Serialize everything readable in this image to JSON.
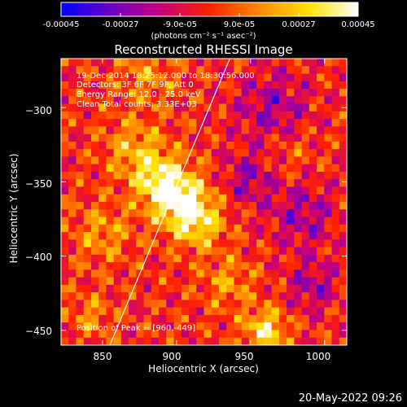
{
  "colorbar": {
    "tick_labels": [
      "-0.00045",
      "-0.00027",
      "-9.0e-05",
      "9.0e-05",
      "0.00027",
      "0.00045"
    ],
    "ticks": [
      -0.00045,
      -0.00027,
      -9e-05,
      9e-05,
      0.00027,
      0.00045
    ],
    "range": [
      -0.00045,
      0.00045
    ],
    "units_label": "(photons cm⁻² s⁻¹ asec⁻²)",
    "colors": [
      "#0000ff",
      "#6a00c8",
      "#c8007a",
      "#ff2000",
      "#ff8a00",
      "#ffe000",
      "#ffffff"
    ]
  },
  "chart_data": {
    "type": "heatmap",
    "title": "Reconstructed RHESSI Image",
    "xlabel": "Heliocentric X (arcsec)",
    "ylabel": "Heliocentric Y (arcsec)",
    "xlim": [
      822,
      1015
    ],
    "ylim": [
      -460,
      -267
    ],
    "x_ticks": [
      850,
      900,
      950,
      1000
    ],
    "y_ticks": [
      -300,
      -350,
      -400,
      -450
    ],
    "x_tick_labels": [
      "850",
      "900",
      "950",
      "1000"
    ],
    "y_tick_labels": [
      "−300",
      "−350",
      "−400",
      "−450"
    ],
    "peak_position": [
      960,
      -449
    ],
    "limb_line": [
      [
        855,
        -460
      ],
      [
        936,
        -267
      ]
    ],
    "annotations": [
      "19-Dec-2014 18:25:12.000 to 18:30:56.000",
      "Detectors: 3F 6F 7F 9F, Att 0",
      "Energy Range: 12.0 - 25.0 keV",
      "Clean     Total counts: 3.33E+03",
      "Position of Peak = [960,-449]"
    ]
  },
  "timestamp": "20-May-2022 09:26"
}
